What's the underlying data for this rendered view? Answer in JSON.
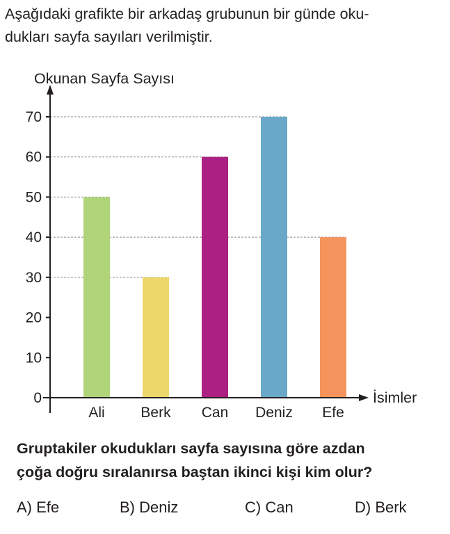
{
  "intro_text": "Aşağıdaki grafikte bir arkadaş grubunun bir günde okuduklar sayfa sayıları verilmiştir.",
  "intro_lines": [
    "Aşağıdaki grafikte bir arkadaş grubunun bir günde oku-",
    "dukları sayfa sayıları verilmiştir."
  ],
  "chart_data": {
    "type": "bar",
    "ylabel": "Okunan Sayfa Sayısı",
    "xlabel": "İsimler",
    "categories": [
      "Ali",
      "Berk",
      "Can",
      "Deniz",
      "Efe"
    ],
    "values": [
      50,
      30,
      60,
      70,
      40
    ],
    "colors": [
      "#afd47a",
      "#ecd76a",
      "#ab2182",
      "#69a8c9",
      "#f4945c"
    ],
    "yticks": [
      0,
      10,
      20,
      30,
      40,
      50,
      60,
      70
    ],
    "ylim": [
      0,
      70
    ],
    "reference_lines": [
      30,
      40,
      50,
      60,
      70
    ],
    "grid": false
  },
  "question_lines": [
    "Gruptakiler okudukları sayfa sayısına göre azdan",
    "çoğa doğru sıralanırsa baştan ikinci kişi kim olur?"
  ],
  "options": [
    {
      "label": "A) Efe"
    },
    {
      "label": "B) Deniz"
    },
    {
      "label": "C) Can"
    },
    {
      "label": "D) Berk"
    }
  ]
}
